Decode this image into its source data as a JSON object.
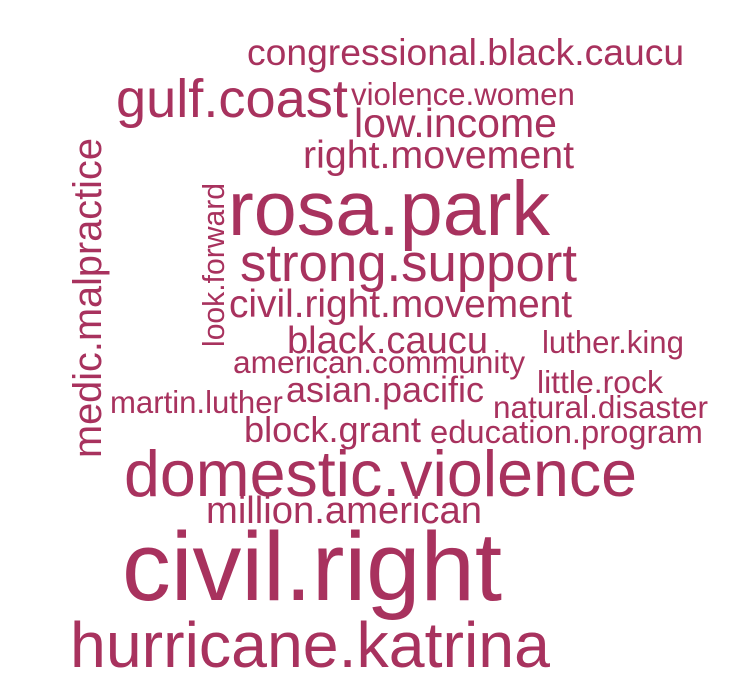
{
  "word_cloud": {
    "color": "#A8325E",
    "words": [
      {
        "text": "civil.right"
      },
      {
        "text": "hurricane.katrina"
      },
      {
        "text": "domestic.violence"
      },
      {
        "text": "rosa.park"
      },
      {
        "text": "strong.support"
      },
      {
        "text": "gulf.coast"
      },
      {
        "text": "medic.malpractice"
      },
      {
        "text": "congressional.black.caucu"
      },
      {
        "text": "low.income"
      },
      {
        "text": "right.movement"
      },
      {
        "text": "civil.right.movement"
      },
      {
        "text": "black.caucu"
      },
      {
        "text": "million.american"
      },
      {
        "text": "asian.pacific"
      },
      {
        "text": "block.grant"
      },
      {
        "text": "american.community"
      },
      {
        "text": "violence.women"
      },
      {
        "text": "look.forward"
      },
      {
        "text": "luther.king"
      },
      {
        "text": "little.rock"
      },
      {
        "text": "martin.luther"
      },
      {
        "text": "natural.disaster"
      },
      {
        "text": "education.program"
      }
    ]
  }
}
